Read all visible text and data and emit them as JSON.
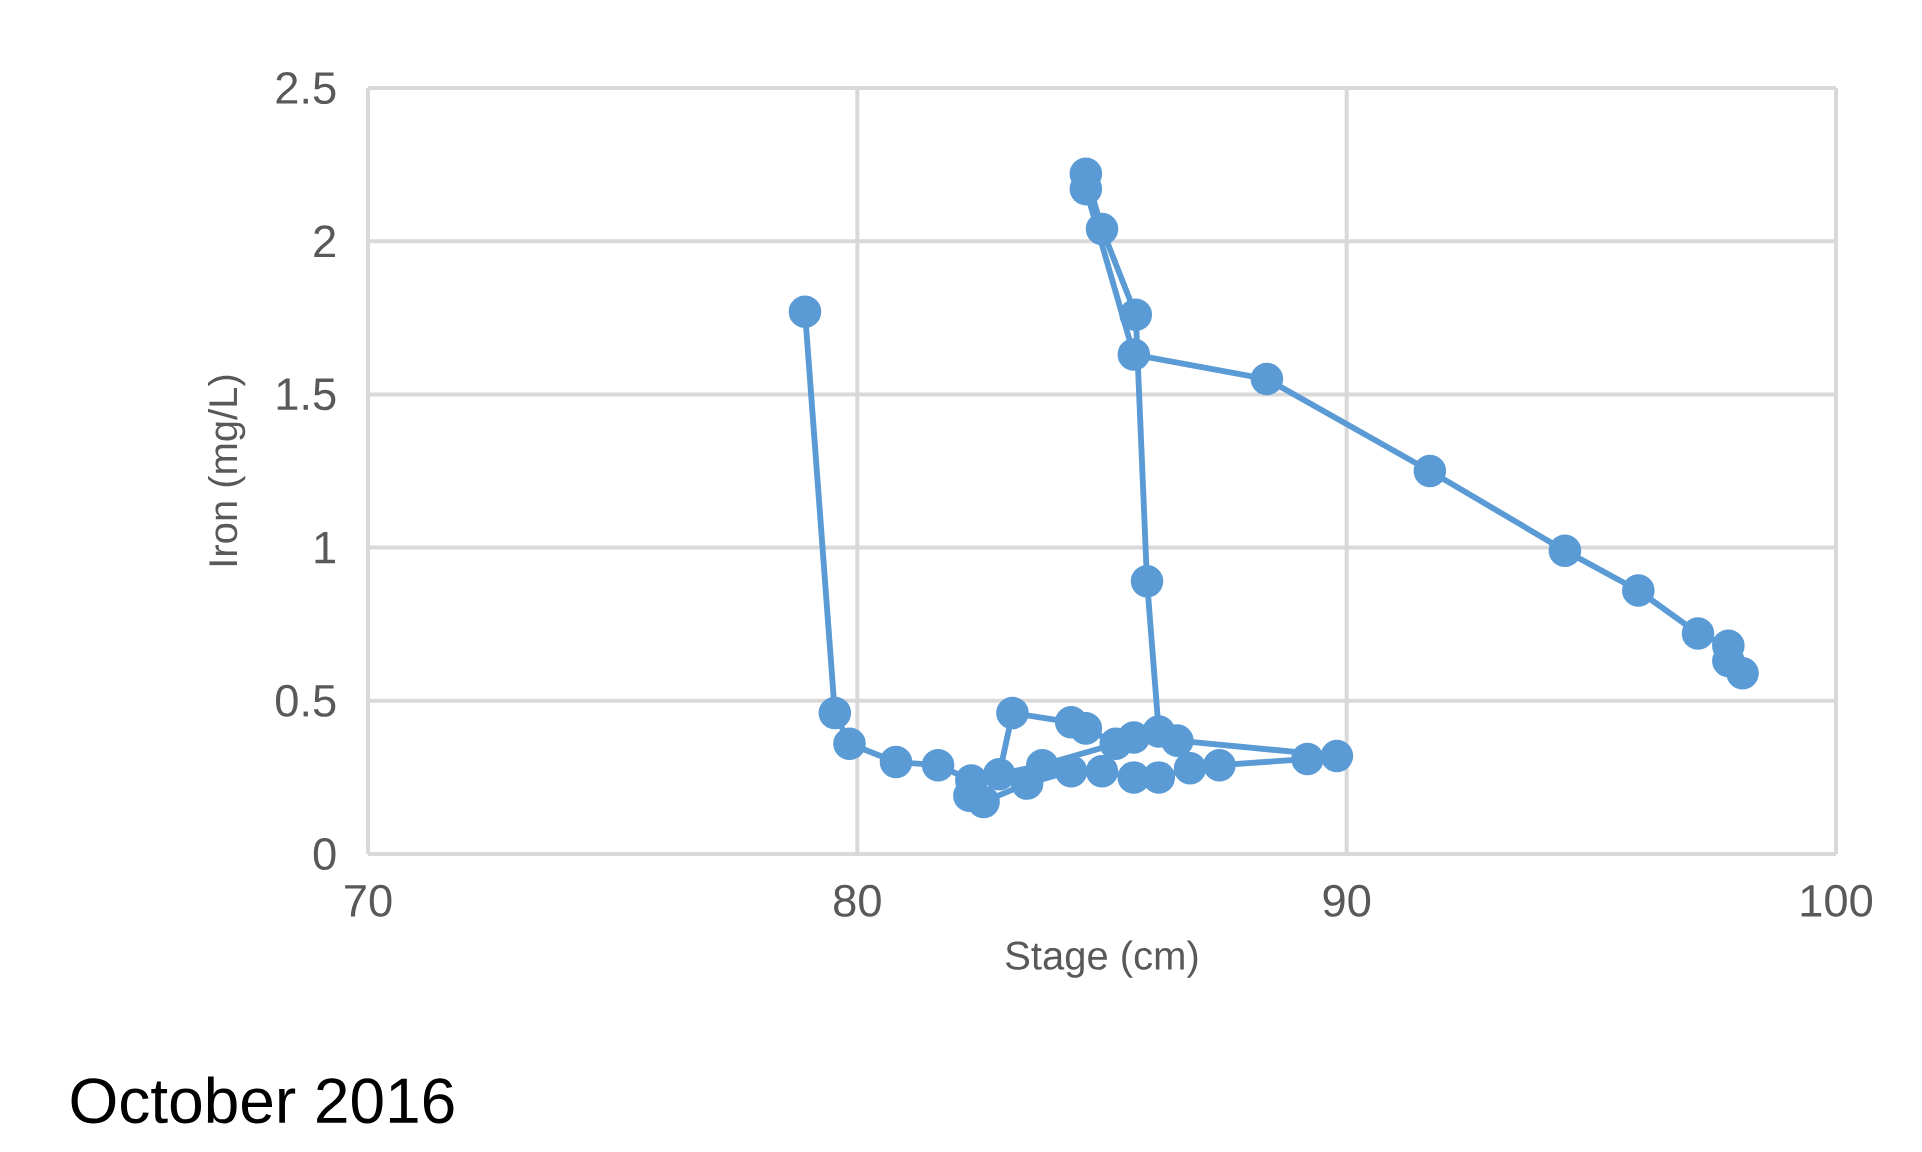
{
  "chart_data": {
    "type": "line",
    "xlabel": "Stage (cm)",
    "ylabel": "Iron (mg/L)",
    "annotations": [
      "October 2016"
    ],
    "x": [
      78.93,
      79.54,
      79.84,
      80.79,
      81.65,
      82.33,
      82.29,
      82.58,
      83.47,
      84.37,
      85.0,
      85.65,
      86.16,
      86.8,
      87.4,
      89.2,
      89.8,
      86.54,
      85.65,
      85.28,
      84.67,
      84.37,
      83.17,
      82.9,
      83.78,
      86.16,
      85.92,
      85.69,
      85.0,
      84.67,
      84.67,
      85.65,
      88.37,
      91.7,
      94.46,
      95.96,
      97.18,
      97.8,
      97.8,
      98.09
    ],
    "values": [
      1.77,
      0.46,
      0.36,
      0.3,
      0.29,
      0.24,
      0.19,
      0.17,
      0.23,
      0.27,
      0.27,
      0.25,
      0.25,
      0.28,
      0.29,
      0.31,
      0.32,
      0.37,
      0.38,
      0.36,
      0.41,
      0.43,
      0.46,
      0.26,
      0.29,
      0.4,
      0.89,
      1.76,
      2.04,
      2.22,
      2.17,
      1.63,
      1.55,
      1.25,
      0.99,
      0.86,
      0.72,
      0.68,
      0.63,
      0.59
    ],
    "color": "#5b9bd5",
    "marker": "circle",
    "line_style": "solid",
    "xlim": [
      70,
      100
    ],
    "ylim": [
      0,
      2.5
    ],
    "xticks": [
      70,
      80,
      90,
      100
    ],
    "yticks": [
      0,
      0.5,
      1,
      1.5,
      2,
      2.5
    ],
    "grid": true
  }
}
